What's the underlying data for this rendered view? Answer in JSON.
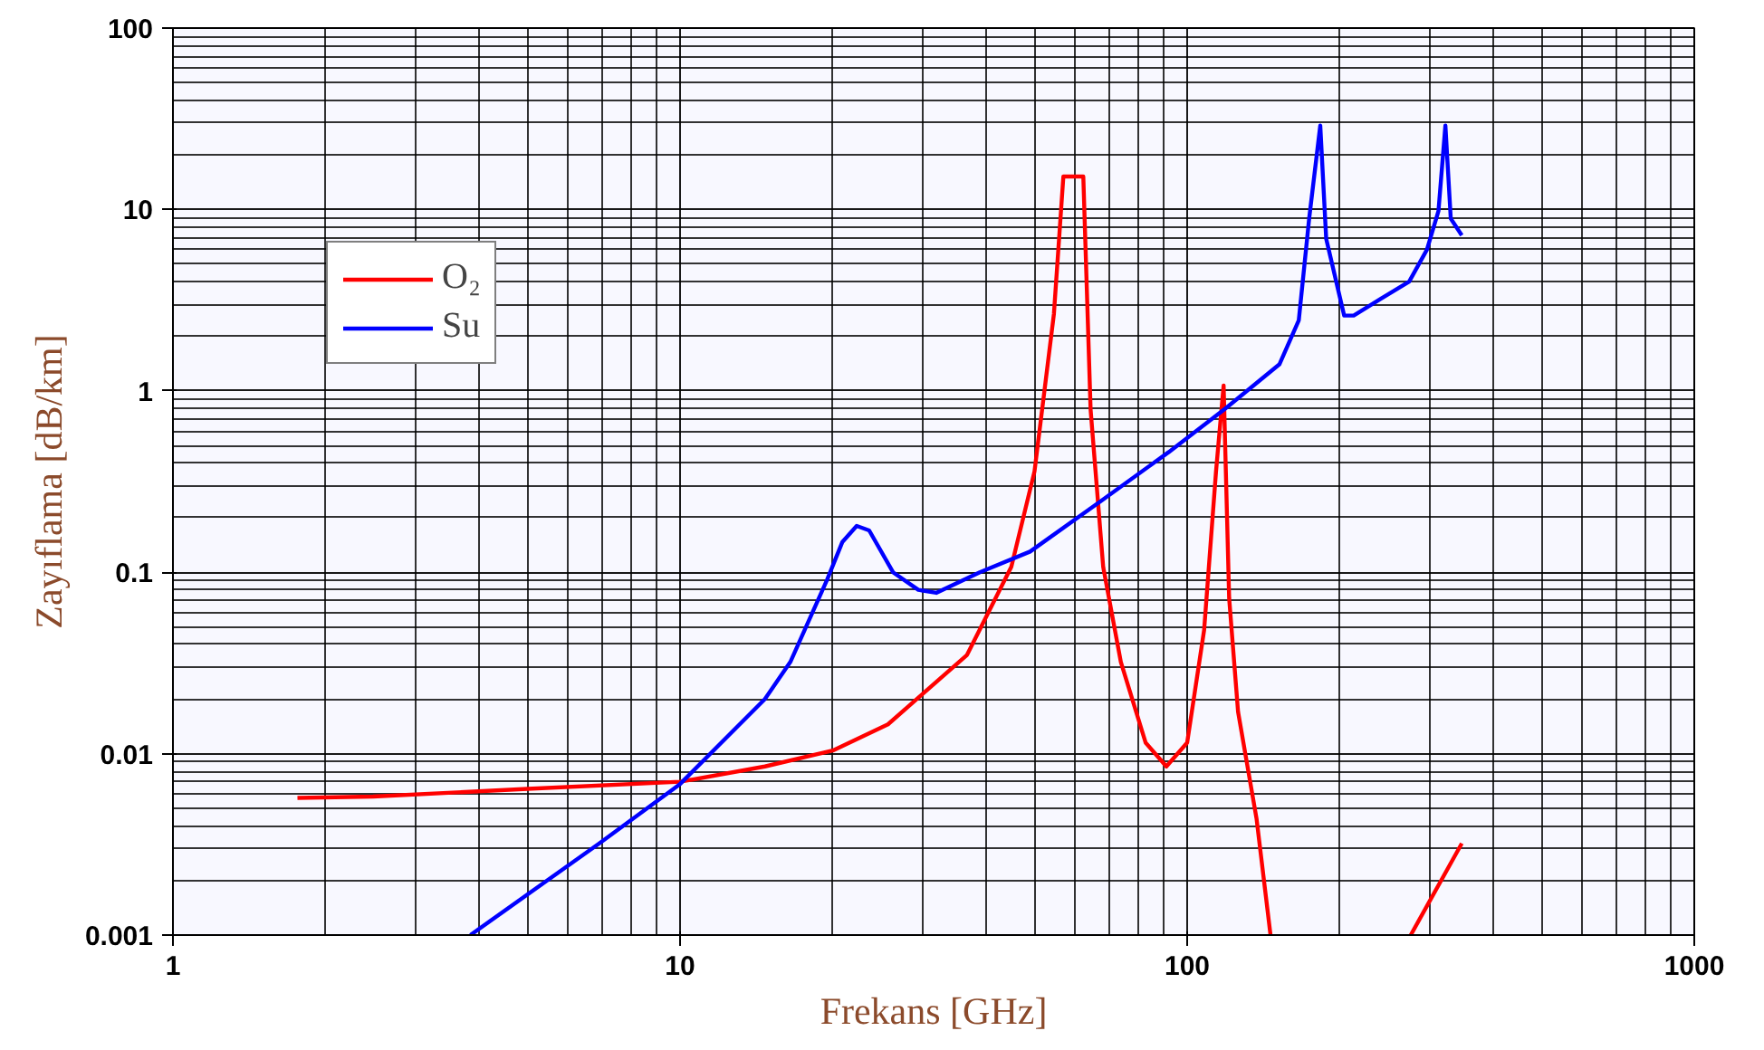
{
  "chart_data": {
    "type": "line",
    "xlabel": "Frekans [GHz]",
    "ylabel": "Zayıflama [dB/km]",
    "log": "xy",
    "grid": true,
    "legend": "top left",
    "xlim": [
      1,
      1000
    ],
    "xticks": [
      1,
      10,
      100,
      1000
    ],
    "ylim": [
      0.001,
      100
    ],
    "yticks": [
      0.001,
      0.01,
      0.1,
      1,
      10,
      100
    ],
    "series": [
      {
        "name": "O₂",
        "color": "#ff0000",
        "x": [
          1.76,
          2.48,
          5,
          10,
          14.7,
          20,
          25.7,
          36.8,
          45,
          50,
          54.6,
          57,
          62.4,
          64.5,
          68.3,
          74,
          82.8,
          91,
          100,
          108,
          114,
          118,
          121,
          126,
          137,
          146,
          200,
          276,
          348
        ],
        "values": [
          0.0057,
          0.0058,
          0.0064,
          0.007,
          0.0085,
          0.0104,
          0.0145,
          0.035,
          0.107,
          0.36,
          2.65,
          15.2,
          15.2,
          0.79,
          0.107,
          0.032,
          0.0115,
          0.0085,
          0.0115,
          0.048,
          0.36,
          1.07,
          0.072,
          0.017,
          0.0044,
          0.001,
          null,
          0.001,
          0.0032
        ]
      },
      {
        "name": "Su",
        "color": "#0000ff",
        "x": [
          3.86,
          6.93,
          10,
          14.7,
          16.5,
          19.5,
          20.9,
          22.3,
          23.6,
          26.3,
          29.5,
          32,
          39,
          49,
          68,
          92,
          119,
          152,
          166,
          174,
          183,
          188,
          204,
          213,
          240,
          274,
          297,
          313,
          323,
          331,
          348
        ],
        "values": [
          0.001,
          0.0032,
          0.0068,
          0.02,
          0.032,
          0.091,
          0.147,
          0.18,
          0.17,
          0.1,
          0.08,
          0.077,
          0.1,
          0.13,
          0.25,
          0.46,
          0.8,
          1.4,
          2.45,
          8.9,
          29,
          6.9,
          2.6,
          2.6,
          3.2,
          4.0,
          6.0,
          9.8,
          29,
          8.9,
          7.2
        ]
      }
    ]
  }
}
